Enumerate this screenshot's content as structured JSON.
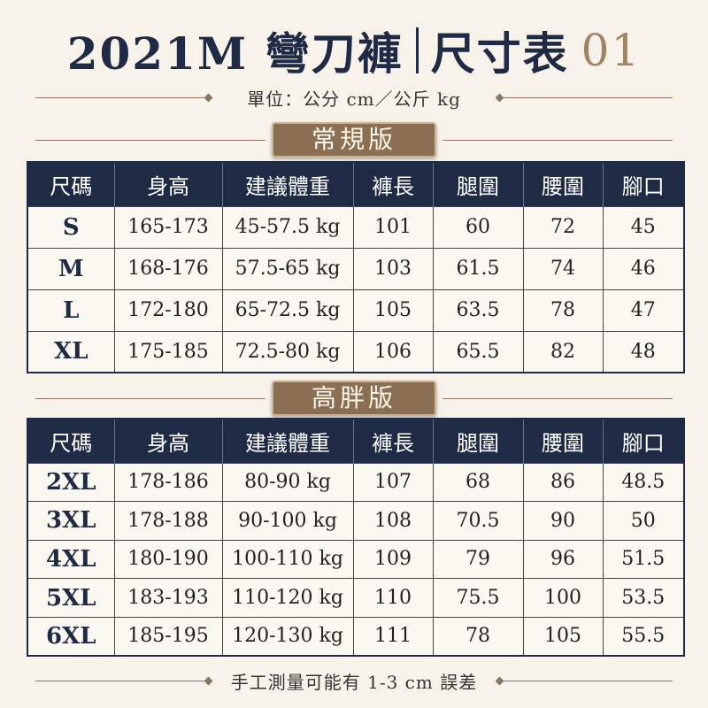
{
  "header": {
    "title": "2021M 彎刀褲",
    "title_suffix": "尺寸表",
    "number": "01",
    "unit": "單位：公分 cm／公斤 kg"
  },
  "tables": [
    {
      "label": "常規版",
      "columns": [
        "尺碼",
        "身高",
        "建議體重",
        "褲長",
        "腿圍",
        "腰圍",
        "腳口"
      ],
      "rows": [
        [
          "S",
          "165-173",
          "45-57.5 kg",
          "101",
          "60",
          "72",
          "45"
        ],
        [
          "M",
          "168-176",
          "57.5-65 kg",
          "103",
          "61.5",
          "74",
          "46"
        ],
        [
          "L",
          "172-180",
          "65-72.5 kg",
          "105",
          "63.5",
          "78",
          "47"
        ],
        [
          "XL",
          "175-185",
          "72.5-80 kg",
          "106",
          "65.5",
          "82",
          "48"
        ]
      ]
    },
    {
      "label": "高胖版",
      "columns": [
        "尺碼",
        "身高",
        "建議體重",
        "褲長",
        "腿圍",
        "腰圍",
        "腳口"
      ],
      "rows": [
        [
          "2XL",
          "178-186",
          "80-90 kg",
          "107",
          "68",
          "86",
          "48.5"
        ],
        [
          "3XL",
          "178-188",
          "90-100 kg",
          "108",
          "70.5",
          "90",
          "50"
        ],
        [
          "4XL",
          "180-190",
          "100-110 kg",
          "109",
          "79",
          "96",
          "51.5"
        ],
        [
          "5XL",
          "183-193",
          "110-120 kg",
          "110",
          "75.5",
          "100",
          "53.5"
        ],
        [
          "6XL",
          "185-195",
          "120-130 kg",
          "111",
          "78",
          "105",
          "55.5"
        ]
      ]
    }
  ],
  "footer": "手工測量可能有 1-3 cm 誤差"
}
